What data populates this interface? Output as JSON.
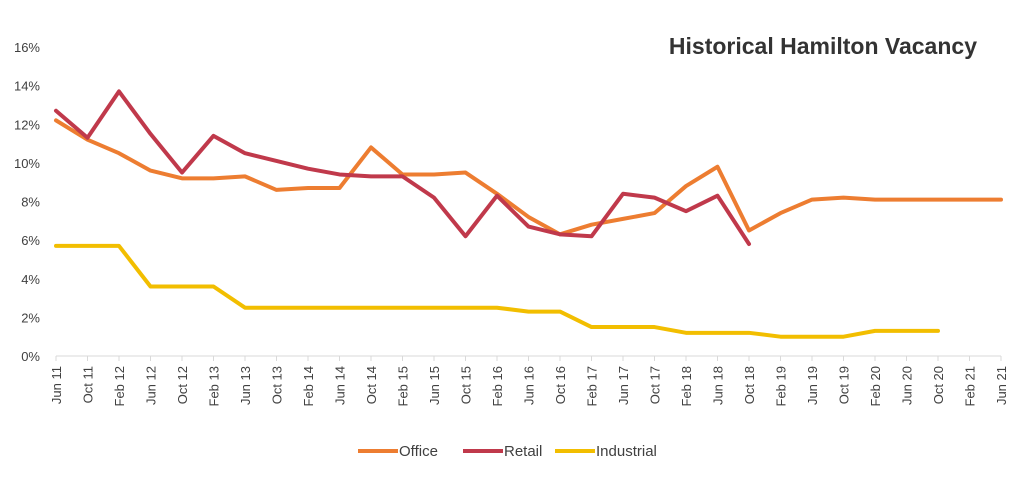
{
  "chart_data": {
    "type": "line",
    "title": "Historical Hamilton Vacancy",
    "xlabel": "",
    "ylabel": "",
    "ylim": [
      0,
      16
    ],
    "yticks": [
      "0%",
      "2%",
      "4%",
      "6%",
      "8%",
      "10%",
      "12%",
      "14%",
      "16%"
    ],
    "grid": false,
    "legend_position": "bottom",
    "categories": [
      "Jun 11",
      "Oct 11",
      "Feb 12",
      "Jun 12",
      "Oct 12",
      "Feb 13",
      "Jun 13",
      "Oct 13",
      "Feb 14",
      "Jun 14",
      "Oct 14",
      "Feb 15",
      "Jun 15",
      "Oct 15",
      "Feb 16",
      "Jun 16",
      "Oct 16",
      "Feb 17",
      "Jun 17",
      "Oct 17",
      "Feb 18",
      "Jun 18",
      "Oct 18",
      "Feb 19",
      "Jun 19",
      "Oct 19",
      "Feb 20",
      "Jun 20",
      "Oct 20",
      "Feb 21",
      "Jun 21"
    ],
    "series": [
      {
        "name": "Office",
        "color": "#ED7D31",
        "values": [
          12.2,
          11.2,
          10.5,
          9.6,
          9.2,
          9.2,
          9.3,
          8.6,
          8.7,
          8.7,
          10.8,
          9.4,
          9.4,
          9.5,
          8.4,
          7.2,
          6.3,
          6.8,
          7.1,
          7.4,
          8.8,
          9.8,
          6.5,
          7.4,
          8.1,
          8.2,
          8.1,
          8.1,
          8.1,
          8.1,
          8.1
        ]
      },
      {
        "name": "Retail",
        "color": "#C0394B",
        "values": [
          12.7,
          11.3,
          13.7,
          11.5,
          9.5,
          11.4,
          10.5,
          10.1,
          9.7,
          9.4,
          9.3,
          9.3,
          8.2,
          6.2,
          8.3,
          6.7,
          6.3,
          6.2,
          8.4,
          8.2,
          7.5,
          8.3,
          5.8,
          null,
          null,
          null,
          null,
          null,
          null,
          null,
          null
        ]
      },
      {
        "name": "Industrial",
        "color": "#F2BE00",
        "values": [
          5.7,
          5.7,
          5.7,
          3.6,
          3.6,
          3.6,
          2.5,
          2.5,
          2.5,
          2.5,
          2.5,
          2.5,
          2.5,
          2.5,
          2.5,
          2.3,
          2.3,
          1.5,
          1.5,
          1.5,
          1.2,
          1.2,
          1.2,
          1.0,
          1.0,
          1.0,
          1.3,
          1.3,
          1.3,
          null,
          null
        ]
      }
    ]
  }
}
